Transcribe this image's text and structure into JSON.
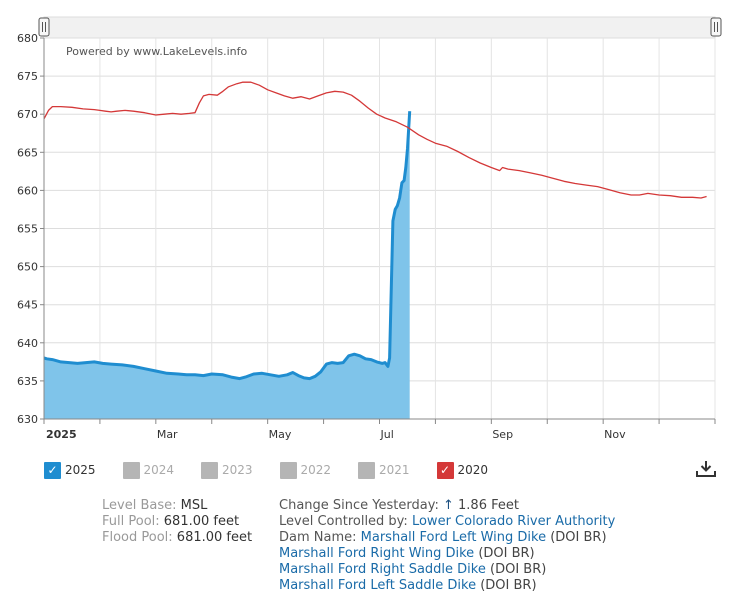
{
  "chart_data": {
    "type": "area",
    "watermark": "Powered by www.LakeLevels.info",
    "y_ticks": [
      "680",
      "675",
      "670",
      "665",
      "660",
      "655",
      "650",
      "645",
      "640",
      "635",
      "630"
    ],
    "ylim": [
      630,
      680
    ],
    "x_ticks": [
      {
        "label": "2025",
        "month": 0,
        "bold": true
      },
      {
        "label": "Mar",
        "month": 2,
        "bold": false
      },
      {
        "label": "May",
        "month": 4,
        "bold": false
      },
      {
        "label": "Jul",
        "month": 6,
        "bold": false
      },
      {
        "label": "Sep",
        "month": 8,
        "bold": false
      },
      {
        "label": "Nov",
        "month": 10,
        "bold": false
      }
    ],
    "series": [
      {
        "name": "2025",
        "color": "#1f8dd0",
        "fill": "#7fc4ea",
        "points": [
          [
            0.0,
            638.0
          ],
          [
            0.05,
            637.9
          ],
          [
            0.15,
            637.8
          ],
          [
            0.3,
            637.5
          ],
          [
            0.45,
            637.4
          ],
          [
            0.6,
            637.3
          ],
          [
            0.75,
            637.4
          ],
          [
            0.9,
            637.5
          ],
          [
            1.05,
            637.3
          ],
          [
            1.2,
            637.2
          ],
          [
            1.4,
            637.1
          ],
          [
            1.6,
            636.9
          ],
          [
            1.8,
            636.6
          ],
          [
            2.0,
            636.3
          ],
          [
            2.2,
            636.0
          ],
          [
            2.4,
            635.9
          ],
          [
            2.55,
            635.8
          ],
          [
            2.7,
            635.8
          ],
          [
            2.85,
            635.7
          ],
          [
            3.0,
            635.9
          ],
          [
            3.2,
            635.8
          ],
          [
            3.35,
            635.5
          ],
          [
            3.5,
            635.3
          ],
          [
            3.6,
            635.5
          ],
          [
            3.75,
            635.9
          ],
          [
            3.9,
            636.0
          ],
          [
            4.05,
            635.8
          ],
          [
            4.2,
            635.6
          ],
          [
            4.35,
            635.8
          ],
          [
            4.45,
            636.1
          ],
          [
            4.55,
            635.7
          ],
          [
            4.65,
            635.4
          ],
          [
            4.75,
            635.3
          ],
          [
            4.85,
            635.6
          ],
          [
            4.95,
            636.2
          ],
          [
            5.05,
            637.2
          ],
          [
            5.15,
            637.4
          ],
          [
            5.25,
            637.3
          ],
          [
            5.35,
            637.4
          ],
          [
            5.45,
            638.3
          ],
          [
            5.55,
            638.5
          ],
          [
            5.65,
            638.3
          ],
          [
            5.75,
            637.9
          ],
          [
            5.85,
            637.8
          ],
          [
            5.95,
            637.5
          ],
          [
            6.05,
            637.3
          ],
          [
            6.1,
            637.4
          ],
          [
            6.15,
            636.9
          ],
          [
            6.18,
            638.0
          ],
          [
            6.2,
            644.0
          ],
          [
            6.24,
            656.0
          ],
          [
            6.28,
            657.5
          ],
          [
            6.32,
            658.0
          ],
          [
            6.36,
            659.0
          ],
          [
            6.4,
            661.0
          ],
          [
            6.44,
            661.3
          ],
          [
            6.47,
            663.0
          ],
          [
            6.5,
            665.5
          ],
          [
            6.54,
            670.4
          ]
        ]
      },
      {
        "name": "2020",
        "color": "#d43838",
        "points": [
          [
            0.0,
            669.4
          ],
          [
            0.08,
            670.5
          ],
          [
            0.15,
            671.0
          ],
          [
            0.3,
            671.0
          ],
          [
            0.5,
            670.9
          ],
          [
            0.7,
            670.7
          ],
          [
            0.9,
            670.6
          ],
          [
            1.0,
            670.5
          ],
          [
            1.1,
            670.4
          ],
          [
            1.2,
            670.3
          ],
          [
            1.3,
            670.4
          ],
          [
            1.45,
            670.5
          ],
          [
            1.6,
            670.4
          ],
          [
            1.8,
            670.2
          ],
          [
            2.0,
            669.9
          ],
          [
            2.15,
            670.0
          ],
          [
            2.3,
            670.1
          ],
          [
            2.45,
            670.0
          ],
          [
            2.6,
            670.1
          ],
          [
            2.7,
            670.2
          ],
          [
            2.78,
            671.5
          ],
          [
            2.85,
            672.4
          ],
          [
            2.95,
            672.6
          ],
          [
            3.1,
            672.5
          ],
          [
            3.2,
            673.0
          ],
          [
            3.3,
            673.6
          ],
          [
            3.45,
            674.0
          ],
          [
            3.55,
            674.2
          ],
          [
            3.7,
            674.2
          ],
          [
            3.85,
            673.8
          ],
          [
            4.0,
            673.2
          ],
          [
            4.15,
            672.8
          ],
          [
            4.3,
            672.4
          ],
          [
            4.45,
            672.1
          ],
          [
            4.6,
            672.3
          ],
          [
            4.75,
            672.0
          ],
          [
            4.9,
            672.4
          ],
          [
            5.05,
            672.8
          ],
          [
            5.2,
            673.0
          ],
          [
            5.35,
            672.9
          ],
          [
            5.5,
            672.5
          ],
          [
            5.65,
            671.7
          ],
          [
            5.8,
            670.8
          ],
          [
            5.95,
            670.0
          ],
          [
            6.1,
            669.5
          ],
          [
            6.3,
            669.0
          ],
          [
            6.5,
            668.3
          ],
          [
            6.7,
            667.3
          ],
          [
            6.85,
            666.7
          ],
          [
            7.0,
            666.2
          ],
          [
            7.2,
            665.8
          ],
          [
            7.4,
            665.1
          ],
          [
            7.6,
            664.3
          ],
          [
            7.8,
            663.6
          ],
          [
            8.0,
            663.0
          ],
          [
            8.15,
            662.6
          ],
          [
            8.2,
            663.0
          ],
          [
            8.3,
            662.8
          ],
          [
            8.5,
            662.6
          ],
          [
            8.7,
            662.3
          ],
          [
            8.9,
            662.0
          ],
          [
            9.1,
            661.6
          ],
          [
            9.3,
            661.2
          ],
          [
            9.5,
            660.9
          ],
          [
            9.7,
            660.7
          ],
          [
            9.9,
            660.5
          ],
          [
            10.1,
            660.1
          ],
          [
            10.3,
            659.7
          ],
          [
            10.5,
            659.4
          ],
          [
            10.65,
            659.4
          ],
          [
            10.8,
            659.6
          ],
          [
            11.0,
            659.4
          ],
          [
            11.2,
            659.3
          ],
          [
            11.4,
            659.1
          ],
          [
            11.6,
            659.1
          ],
          [
            11.75,
            659.0
          ],
          [
            11.85,
            659.2
          ]
        ]
      }
    ],
    "grid": true
  },
  "legend": [
    {
      "label": "2025",
      "color": "#1f8dd0",
      "checked": true
    },
    {
      "label": "2024",
      "color": "#b5b5b5",
      "checked": false
    },
    {
      "label": "2023",
      "color": "#b5b5b5",
      "checked": false
    },
    {
      "label": "2022",
      "color": "#b5b5b5",
      "checked": false
    },
    {
      "label": "2021",
      "color": "#b5b5b5",
      "checked": false
    },
    {
      "label": "2020",
      "color": "#d43838",
      "checked": true
    }
  ],
  "icons": {
    "download": "download-icon",
    "scroll_handle": "scroll-handle-icon",
    "check": "checkmark-icon"
  },
  "info": {
    "level_base_label": "Level Base:",
    "level_base_value": "MSL",
    "full_pool_label": "Full Pool:",
    "full_pool_value": "681.00 feet",
    "flood_pool_label": "Flood Pool:",
    "flood_pool_value": "681.00 feet",
    "change_label": "Change Since Yesterday:",
    "change_arrow": "↑",
    "change_value": "1.86 Feet",
    "controlled_label": "Level Controlled by:",
    "controlled_value": "Lower Colorado River Authority",
    "dam_label": "Dam Name:",
    "dams": [
      {
        "name": "Marshall Ford Left Wing Dike",
        "suffix": "(DOI BR)"
      },
      {
        "name": "Marshall Ford Right Wing Dike",
        "suffix": "(DOI BR)"
      },
      {
        "name": "Marshall Ford Right Saddle Dike",
        "suffix": "(DOI BR)"
      },
      {
        "name": "Marshall Ford Left Saddle Dike",
        "suffix": "(DOI BR)"
      }
    ]
  }
}
